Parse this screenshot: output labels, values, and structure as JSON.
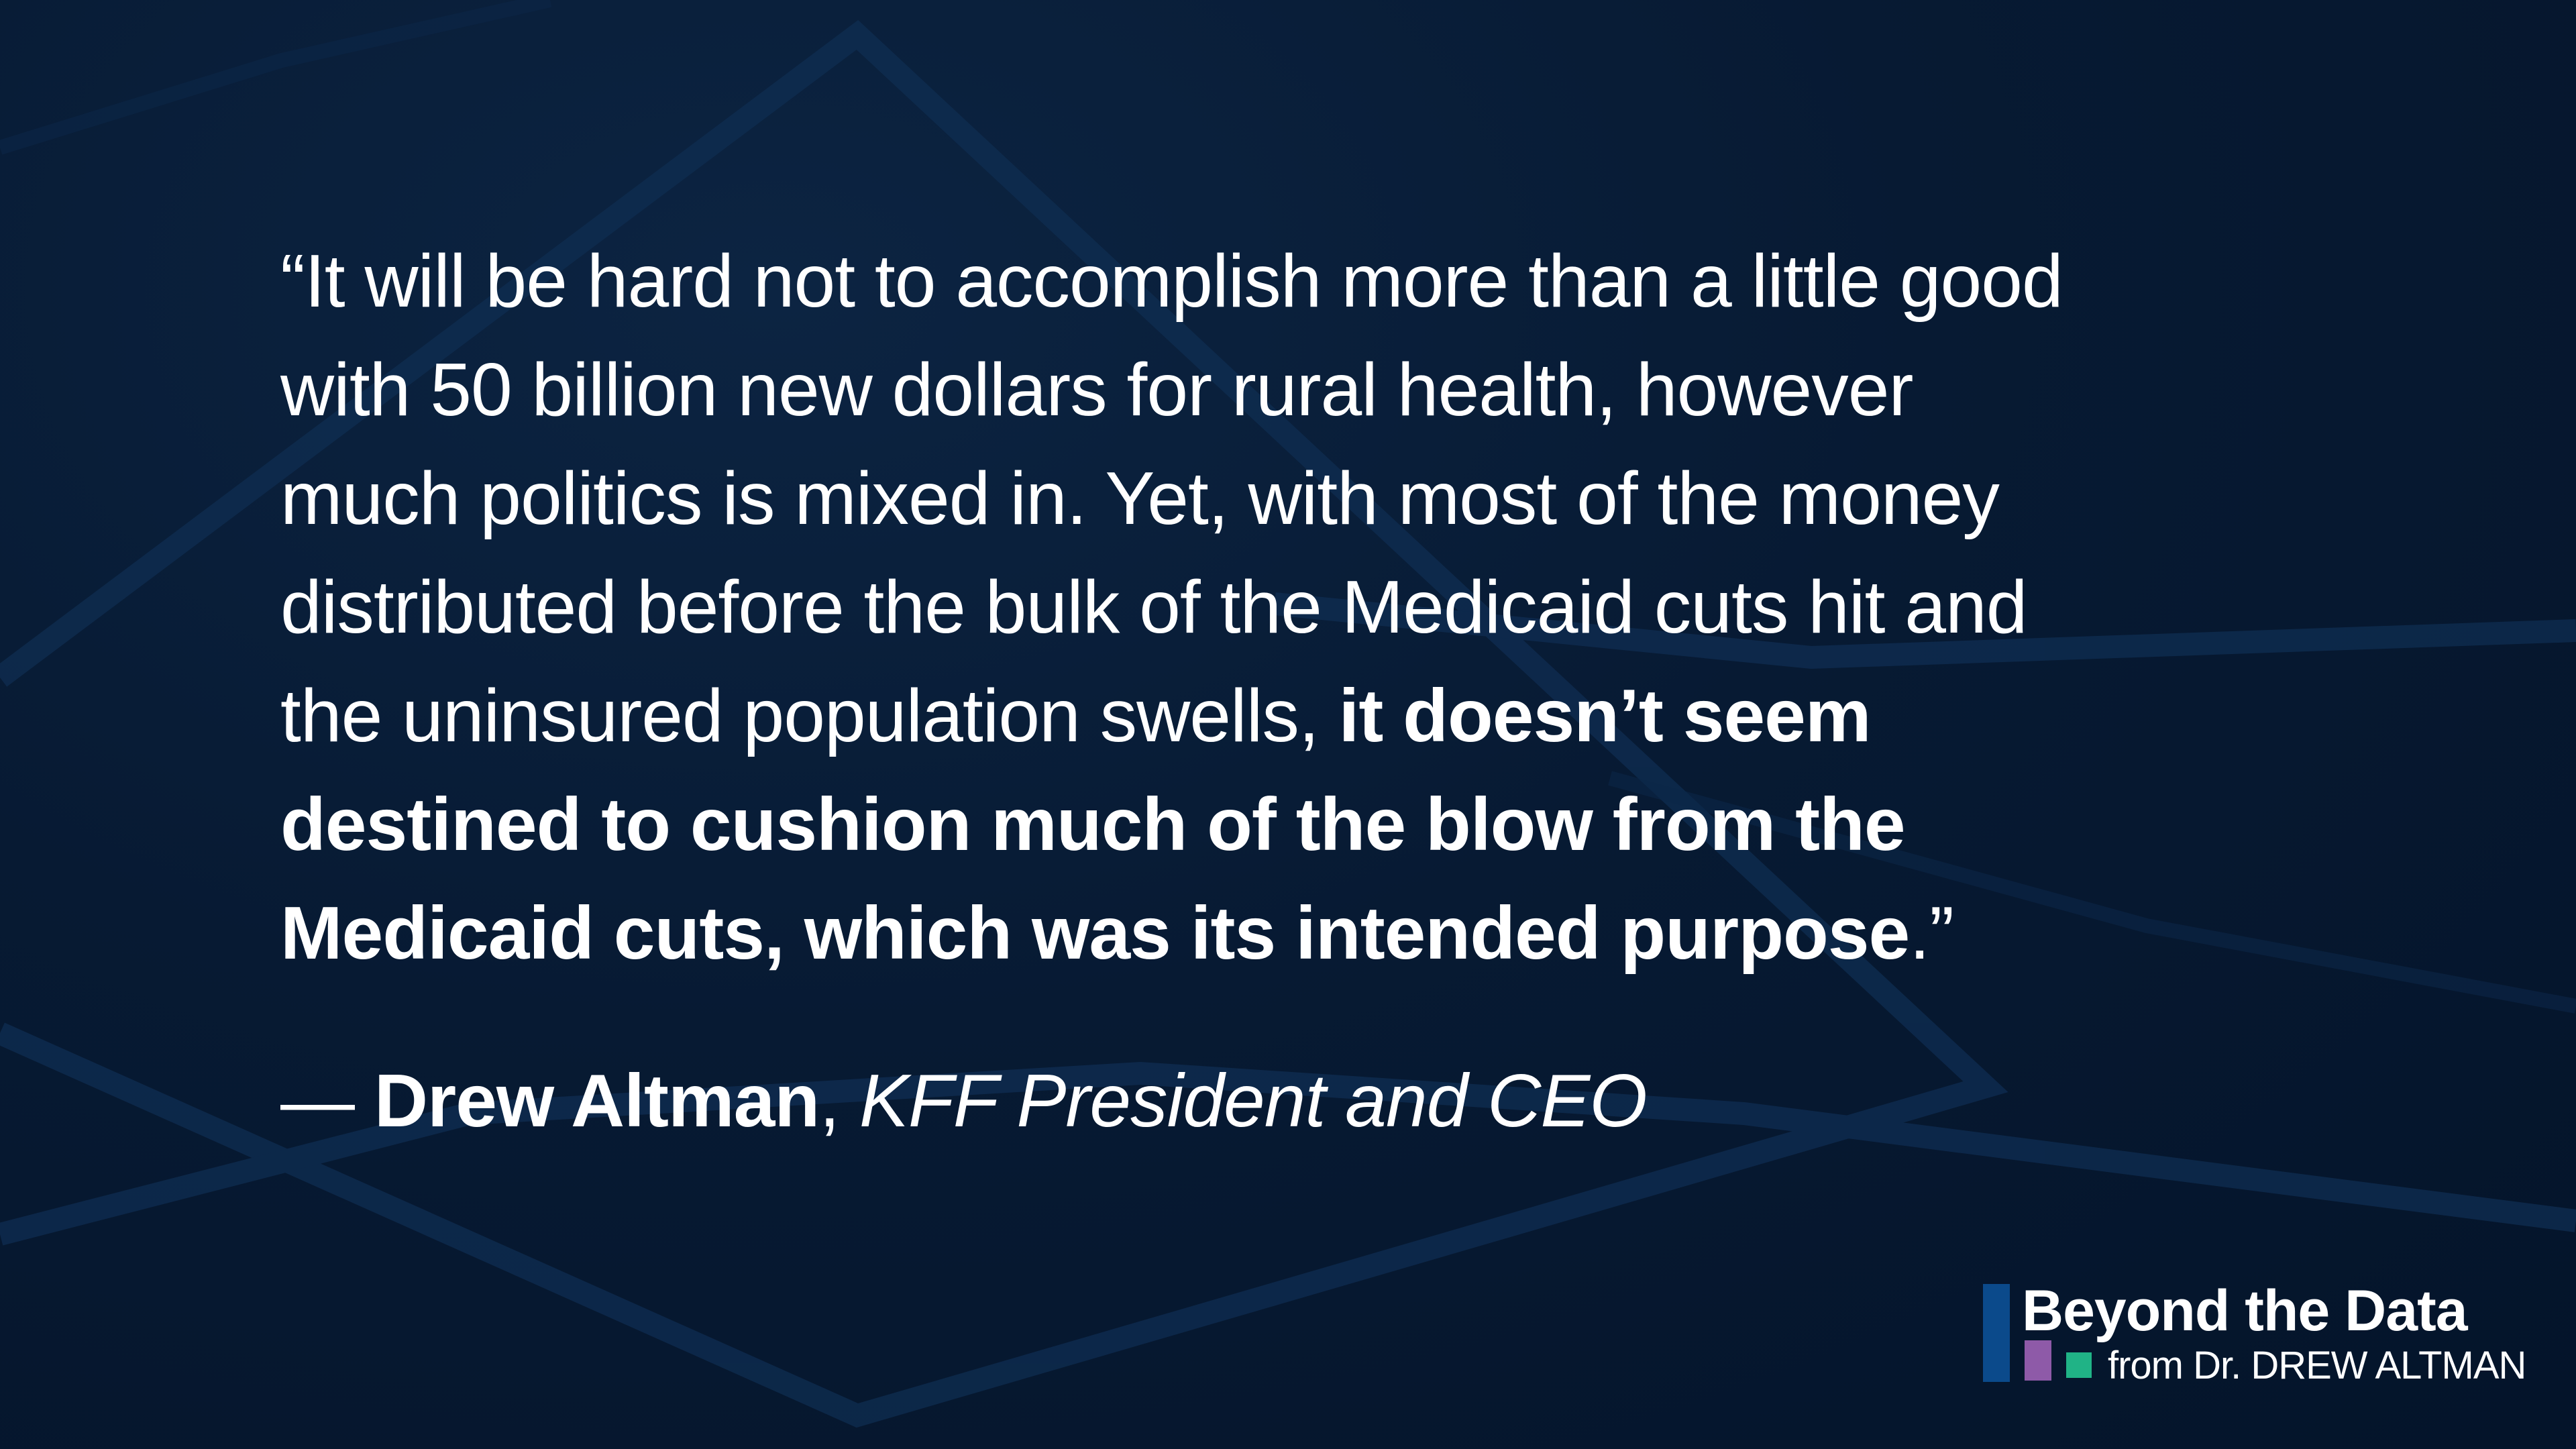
{
  "quote": {
    "lines": [
      {
        "normal": "“It will be hard not to accomplish more than a little good",
        "bold": "",
        "tail": ""
      },
      {
        "normal": "with 50 billion new dollars for rural health, however",
        "bold": "",
        "tail": ""
      },
      {
        "normal": "much politics is mixed in. Yet, with most of the money",
        "bold": "",
        "tail": ""
      },
      {
        "normal": "distributed before the bulk of the Medicaid cuts hit and",
        "bold": "",
        "tail": ""
      },
      {
        "normal": "the uninsured population swells, ",
        "bold": "it doesn’t seem",
        "tail": ""
      },
      {
        "normal": "",
        "bold": "destined to cushion much of the blow from the",
        "tail": ""
      },
      {
        "normal": "",
        "bold": "Medicaid cuts, which was its intended purpose",
        "tail": ".”"
      }
    ]
  },
  "attribution": {
    "dash": "— ",
    "name": "Drew Altman",
    "separator": ", ",
    "role": "KFF President and CEO"
  },
  "brand": {
    "title": "Beyond the Data",
    "subtitle": "from Dr. DREW ALTMAN",
    "colors": {
      "blue": "#0b4a8b",
      "purple": "#8e5aa8",
      "green": "#20b386"
    }
  },
  "colors": {
    "background": "#06172e",
    "text": "#ffffff"
  }
}
